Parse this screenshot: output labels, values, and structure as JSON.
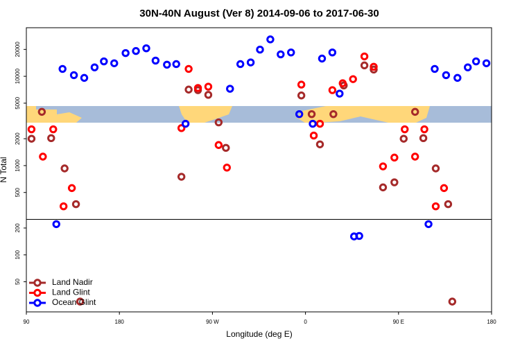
{
  "chart_data": {
    "type": "scatter",
    "title": "30N-40N August (Ver 8)   2014-09-06 to 2017-06-30",
    "x_label": "Longitude (deg E)",
    "y_label": "N Total",
    "xlim": [
      90,
      540
    ],
    "xticks": [
      90,
      180,
      {
        "value": 270,
        "label": "90 W"
      },
      {
        "value": 360,
        "label": "0"
      },
      {
        "value": 450,
        "label": "90 E"
      },
      {
        "value": 540,
        "label": "180"
      }
    ],
    "ylim": [
      23,
      35000
    ],
    "log_y": true,
    "yticks": [
      50,
      100,
      200,
      500,
      1000,
      2000,
      5000,
      10000,
      20000
    ],
    "hline": 250,
    "legend": "lower left",
    "series": [
      {
        "name": "Land Nadir",
        "color": "#a52a2a",
        "x": [
          105,
          95,
          114,
          127,
          138,
          240,
          247,
          256,
          266,
          276,
          283,
          356,
          366,
          374,
          387,
          397,
          417,
          426,
          435,
          446,
          455,
          466,
          474,
          486,
          498,
          502,
          142
        ],
        "y": [
          4000,
          2000,
          2030,
          930,
          370,
          750,
          7100,
          7000,
          6200,
          3050,
          1580,
          6100,
          3770,
          1730,
          3770,
          7900,
          13250,
          11900,
          570,
          650,
          2000,
          4000,
          2030,
          930,
          370,
          30,
          30
        ]
      },
      {
        "name": "Land Glint",
        "color": "#ff0000",
        "x": [
          95,
          106,
          116,
          134,
          126,
          240,
          247,
          256,
          266,
          276,
          284,
          356,
          368,
          374,
          386,
          396,
          406,
          417,
          426,
          435,
          446,
          456,
          466,
          475,
          494,
          486
        ],
        "y": [
          2550,
          1260,
          2550,
          560,
          350,
          2630,
          12100,
          7400,
          7650,
          1700,
          950,
          8070,
          2170,
          2940,
          7000,
          8360,
          9300,
          16700,
          12800,
          980,
          1230,
          2550,
          1260,
          2550,
          560,
          350
        ]
      },
      {
        "name": "Ocean Glint",
        "color": "#0000ff",
        "x": [
          119,
          125,
          136,
          146,
          156,
          165,
          175,
          186,
          196,
          206,
          215,
          226,
          235,
          244,
          287,
          297,
          307,
          316,
          326,
          336,
          346,
          354,
          367,
          376,
          386,
          393,
          407,
          412,
          479,
          485,
          496,
          507,
          517,
          525,
          535
        ],
        "y": [
          221,
          12100,
          10300,
          9600,
          12600,
          14700,
          14000,
          18200,
          19200,
          20600,
          15000,
          13500,
          13700,
          2940,
          7250,
          13700,
          14300,
          19900,
          25900,
          17600,
          18500,
          3770,
          2940,
          15800,
          18500,
          6400,
          161,
          163,
          221,
          12100,
          10300,
          9600,
          12600,
          14700,
          14000
        ]
      }
    ]
  }
}
